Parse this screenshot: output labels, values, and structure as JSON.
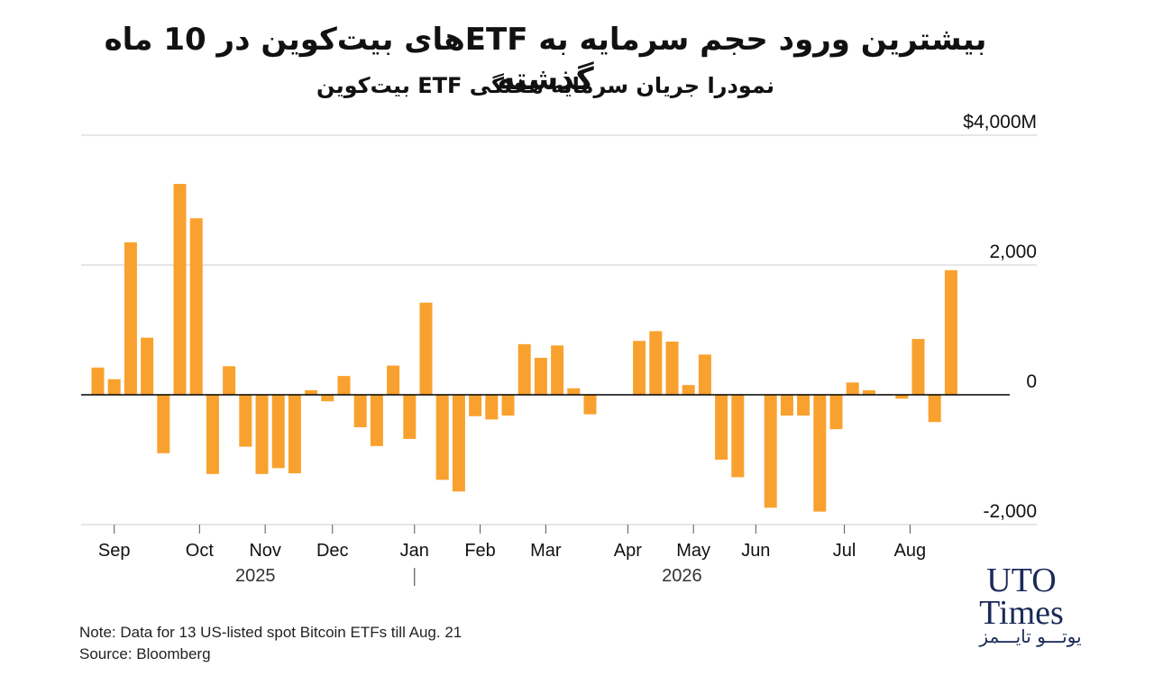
{
  "header": {
    "title": "بیشترین ورود حجم سرمایه به ETFهای بیت‌کوین در 10 ماه گذشته",
    "subtitle": "نمودرا جریان سرمایه هفتگی ETF بیت‌کوین"
  },
  "footer": {
    "note": "Note: Data for 13 US-listed spot Bitcoin ETFs till Aug. 21",
    "source": "Source: Bloomberg"
  },
  "logo": {
    "line1": "UTO",
    "line2": "Times",
    "persian": "یوتـــو تایـــمز"
  },
  "colors": {
    "bar": "#F9A12E",
    "grid": "#cccccc",
    "baseline": "#000000",
    "text": "#111111"
  },
  "chart_data": {
    "type": "bar",
    "y_tick_labels": [
      "$4,000M",
      "2,000",
      "0",
      "-2,000"
    ],
    "y_ticks": [
      4000,
      2000,
      0,
      -2000
    ],
    "ylim": [
      -2000,
      4000
    ],
    "x_month_labels": [
      {
        "label": "Sep",
        "index": 1
      },
      {
        "label": "Oct",
        "index": 6.2
      },
      {
        "label": "Nov",
        "index": 10.2
      },
      {
        "label": "Dec",
        "index": 14.3
      },
      {
        "label": "Jan",
        "index": 19.3
      },
      {
        "label": "Feb",
        "index": 23.3
      },
      {
        "label": "Mar",
        "index": 27.3
      },
      {
        "label": "Apr",
        "index": 32.3
      },
      {
        "label": "May",
        "index": 36.3
      },
      {
        "label": "Jun",
        "index": 40.1
      },
      {
        "label": "Jul",
        "index": 45.5
      },
      {
        "label": "Aug",
        "index": 49.5
      }
    ],
    "year_labels": [
      {
        "label": "2025",
        "index": 9.6
      },
      {
        "label": "2026",
        "index": 35.6
      }
    ],
    "year_divider_index": 19.3,
    "values": [
      420,
      240,
      2350,
      880,
      -900,
      3250,
      2720,
      -1220,
      440,
      -800,
      -1220,
      -1130,
      -1210,
      70,
      -100,
      290,
      -500,
      -790,
      450,
      -680,
      1420,
      -1310,
      -1490,
      -330,
      -380,
      -320,
      780,
      570,
      760,
      100,
      -300,
      0,
      0,
      830,
      980,
      820,
      150,
      620,
      -1000,
      -1270,
      0,
      -1740,
      -320,
      -320,
      -1800,
      -530,
      190,
      70,
      10,
      -60,
      860,
      -420,
      1920
    ]
  }
}
